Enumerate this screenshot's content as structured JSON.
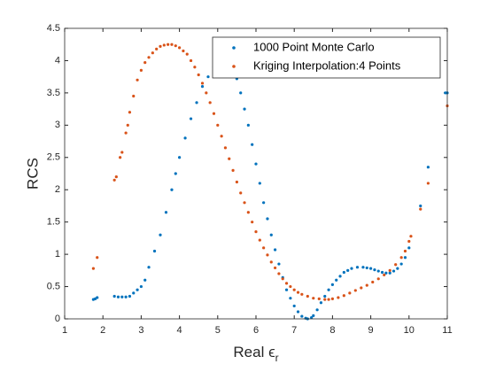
{
  "chart_data": {
    "type": "scatter",
    "x_label": {
      "text": "Real ϵ",
      "subscript": "r"
    },
    "y_label": "RCS",
    "xlim": [
      1,
      11
    ],
    "xticks": [
      1,
      2,
      3,
      4,
      5,
      6,
      7,
      8,
      9,
      10,
      11
    ],
    "ylim": [
      0,
      4.5
    ],
    "yticks": [
      0,
      0.5,
      1,
      1.5,
      2,
      2.5,
      3,
      3.5,
      4,
      4.5
    ],
    "grid": false,
    "legend": "top-right",
    "series": [
      {
        "name": "1000 Point Monte Carlo",
        "color": "#0072BD",
        "x": [
          1.75,
          1.8,
          1.85,
          2.3,
          2.4,
          2.5,
          2.6,
          2.7,
          2.8,
          2.9,
          3.0,
          3.1,
          3.2,
          3.35,
          3.5,
          3.65,
          3.8,
          3.9,
          4.0,
          4.15,
          4.3,
          4.45,
          4.6,
          4.75,
          4.9,
          5.05,
          5.2,
          5.3,
          5.4,
          5.5,
          5.6,
          5.7,
          5.8,
          5.9,
          6.0,
          6.1,
          6.2,
          6.3,
          6.4,
          6.5,
          6.6,
          6.7,
          6.8,
          6.9,
          7.0,
          7.1,
          7.2,
          7.3,
          7.35,
          7.45,
          7.5,
          7.6,
          7.7,
          7.8,
          7.9,
          8.0,
          8.1,
          8.2,
          8.3,
          8.4,
          8.5,
          8.65,
          8.8,
          8.9,
          9.0,
          9.1,
          9.2,
          9.3,
          9.4,
          9.5,
          9.6,
          9.7,
          9.8,
          9.9,
          10.0,
          10.3,
          10.5,
          10.95,
          11.0
        ],
        "y": [
          0.3,
          0.31,
          0.33,
          0.35,
          0.34,
          0.34,
          0.34,
          0.35,
          0.4,
          0.45,
          0.5,
          0.6,
          0.8,
          1.05,
          1.3,
          1.65,
          2.0,
          2.25,
          2.5,
          2.8,
          3.1,
          3.35,
          3.6,
          3.75,
          3.9,
          3.98,
          4.0,
          3.98,
          3.9,
          3.72,
          3.5,
          3.25,
          3.0,
          2.7,
          2.4,
          2.1,
          1.8,
          1.55,
          1.3,
          1.07,
          0.85,
          0.64,
          0.45,
          0.32,
          0.2,
          0.11,
          0.04,
          0.01,
          0.0,
          0.02,
          0.05,
          0.14,
          0.25,
          0.35,
          0.45,
          0.53,
          0.6,
          0.66,
          0.72,
          0.75,
          0.78,
          0.8,
          0.8,
          0.79,
          0.78,
          0.76,
          0.74,
          0.72,
          0.71,
          0.71,
          0.74,
          0.78,
          0.85,
          0.95,
          1.1,
          1.75,
          2.35,
          3.5,
          3.5
        ]
      },
      {
        "name": "Kriging Interpolation:4 Points",
        "color": "#D95319",
        "x": [
          1.75,
          1.85,
          2.3,
          2.35,
          2.45,
          2.5,
          2.6,
          2.65,
          2.7,
          2.8,
          2.9,
          3.0,
          3.1,
          3.2,
          3.3,
          3.4,
          3.5,
          3.6,
          3.7,
          3.8,
          3.9,
          4.0,
          4.1,
          4.2,
          4.3,
          4.4,
          4.5,
          4.6,
          4.7,
          4.8,
          4.9,
          5.0,
          5.1,
          5.2,
          5.3,
          5.4,
          5.5,
          5.6,
          5.7,
          5.8,
          5.9,
          6.0,
          6.1,
          6.2,
          6.3,
          6.4,
          6.5,
          6.6,
          6.7,
          6.8,
          6.9,
          7.0,
          7.1,
          7.2,
          7.35,
          7.5,
          7.65,
          7.8,
          7.9,
          8.0,
          8.15,
          8.3,
          8.45,
          8.6,
          8.75,
          8.9,
          9.05,
          9.2,
          9.35,
          9.5,
          9.65,
          9.8,
          9.9,
          10.0,
          10.05,
          10.3,
          10.5,
          11.0
        ],
        "y": [
          0.78,
          0.95,
          2.15,
          2.2,
          2.5,
          2.58,
          2.88,
          3.0,
          3.2,
          3.45,
          3.7,
          3.85,
          3.97,
          4.05,
          4.12,
          4.18,
          4.22,
          4.24,
          4.25,
          4.25,
          4.23,
          4.2,
          4.15,
          4.1,
          4.0,
          3.9,
          3.78,
          3.65,
          3.5,
          3.35,
          3.18,
          3.0,
          2.83,
          2.65,
          2.48,
          2.3,
          2.12,
          1.95,
          1.8,
          1.65,
          1.5,
          1.35,
          1.22,
          1.1,
          0.99,
          0.88,
          0.79,
          0.7,
          0.62,
          0.55,
          0.5,
          0.45,
          0.41,
          0.38,
          0.35,
          0.32,
          0.31,
          0.3,
          0.3,
          0.31,
          0.33,
          0.36,
          0.4,
          0.44,
          0.48,
          0.52,
          0.57,
          0.62,
          0.68,
          0.75,
          0.84,
          0.95,
          1.05,
          1.2,
          1.28,
          1.7,
          2.1,
          3.3
        ]
      }
    ]
  }
}
